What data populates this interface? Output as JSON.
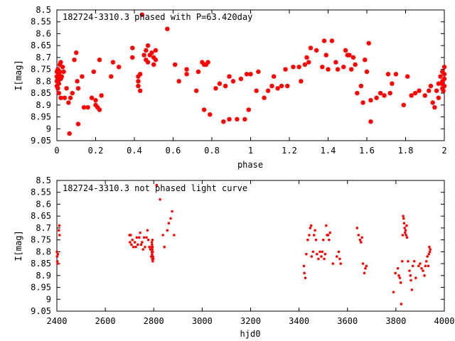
{
  "chart_data": [
    {
      "type": "scatter",
      "title": "182724-3310.3 phased with P=63.420day",
      "xlabel": "phase",
      "ylabel": "I[mag]",
      "xlim": [
        0,
        2
      ],
      "ylim": [
        9.05,
        8.5
      ],
      "y_inverted": true,
      "x_ticks": [
        "0",
        "0.2",
        "0.4",
        "0.6",
        "0.8",
        "1",
        "1.2",
        "1.4",
        "1.6",
        "1.8",
        "2"
      ],
      "y_ticks": [
        "8.5",
        "8.55",
        "8.6",
        "8.65",
        "8.7",
        "8.75",
        "8.8",
        "8.85",
        "8.9",
        "8.95",
        "9",
        "9.05"
      ],
      "marker": "star",
      "color": "#ff0000",
      "points": [
        [
          0.0,
          8.76
        ],
        [
          0.0,
          8.78
        ],
        [
          0.0,
          8.8
        ],
        [
          0.0,
          8.82
        ],
        [
          0.005,
          8.75
        ],
        [
          0.005,
          8.79
        ],
        [
          0.005,
          8.83
        ],
        [
          0.01,
          8.77
        ],
        [
          0.01,
          8.81
        ],
        [
          0.01,
          8.85
        ],
        [
          0.015,
          8.73
        ],
        [
          0.015,
          8.76
        ],
        [
          0.02,
          8.72
        ],
        [
          0.02,
          8.79
        ],
        [
          0.02,
          8.87
        ],
        [
          0.025,
          8.78
        ],
        [
          0.03,
          8.74
        ],
        [
          0.035,
          8.76
        ],
        [
          0.04,
          8.87
        ],
        [
          0.05,
          8.83
        ],
        [
          0.06,
          8.89
        ],
        [
          0.065,
          9.02
        ],
        [
          0.07,
          8.87
        ],
        [
          0.08,
          8.85
        ],
        [
          0.09,
          8.71
        ],
        [
          0.1,
          8.68
        ],
        [
          0.105,
          8.8
        ],
        [
          0.11,
          8.83
        ],
        [
          0.11,
          8.98
        ],
        [
          0.13,
          8.78
        ],
        [
          0.14,
          8.91
        ],
        [
          0.16,
          8.91
        ],
        [
          0.18,
          8.87
        ],
        [
          0.19,
          8.76
        ],
        [
          0.2,
          8.88
        ],
        [
          0.2,
          8.9
        ],
        [
          0.21,
          8.91
        ],
        [
          0.22,
          8.92
        ],
        [
          0.22,
          8.71
        ],
        [
          0.23,
          8.86
        ],
        [
          0.28,
          8.78
        ],
        [
          0.29,
          8.72
        ],
        [
          0.32,
          8.74
        ],
        [
          0.39,
          8.7
        ],
        [
          0.39,
          8.66
        ],
        [
          0.42,
          8.78
        ],
        [
          0.42,
          8.8
        ],
        [
          0.42,
          8.82
        ],
        [
          0.43,
          8.84
        ],
        [
          0.43,
          8.77
        ],
        [
          0.44,
          8.52
        ],
        [
          0.45,
          8.69
        ],
        [
          0.46,
          8.67
        ],
        [
          0.46,
          8.71
        ],
        [
          0.47,
          8.65
        ],
        [
          0.47,
          8.72
        ],
        [
          0.48,
          8.69
        ],
        [
          0.49,
          8.68
        ],
        [
          0.5,
          8.7
        ],
        [
          0.5,
          8.73
        ],
        [
          0.51,
          8.67
        ],
        [
          0.51,
          8.71
        ],
        [
          0.57,
          8.58
        ],
        [
          0.61,
          8.73
        ],
        [
          0.63,
          8.8
        ],
        [
          0.67,
          8.75
        ],
        [
          0.67,
          8.77
        ],
        [
          0.72,
          8.84
        ],
        [
          0.73,
          8.76
        ],
        [
          0.75,
          8.72
        ],
        [
          0.76,
          8.73
        ],
        [
          0.77,
          8.73
        ],
        [
          0.78,
          8.72
        ],
        [
          0.76,
          8.92
        ],
        [
          0.79,
          8.94
        ],
        [
          0.82,
          8.83
        ],
        [
          0.84,
          8.81
        ],
        [
          0.86,
          8.97
        ],
        [
          0.87,
          8.82
        ],
        [
          0.89,
          8.78
        ],
        [
          0.89,
          8.96
        ],
        [
          0.91,
          8.8
        ],
        [
          0.93,
          8.96
        ],
        [
          0.95,
          8.79
        ],
        [
          0.97,
          8.96
        ],
        [
          0.98,
          8.77
        ],
        [
          0.99,
          8.92
        ],
        [
          1.0,
          8.77
        ],
        [
          1.03,
          8.84
        ],
        [
          1.04,
          8.76
        ],
        [
          1.07,
          8.87
        ],
        [
          1.09,
          8.84
        ],
        [
          1.11,
          8.82
        ],
        [
          1.12,
          8.78
        ],
        [
          1.14,
          8.83
        ],
        [
          1.16,
          8.82
        ],
        [
          1.18,
          8.75
        ],
        [
          1.19,
          8.82
        ],
        [
          1.22,
          8.74
        ],
        [
          1.25,
          8.74
        ],
        [
          1.26,
          8.8
        ],
        [
          1.28,
          8.73
        ],
        [
          1.29,
          8.7
        ],
        [
          1.3,
          8.72
        ],
        [
          1.31,
          8.66
        ],
        [
          1.34,
          8.67
        ],
        [
          1.37,
          8.74
        ],
        [
          1.38,
          8.63
        ],
        [
          1.39,
          8.69
        ],
        [
          1.4,
          8.75
        ],
        [
          1.42,
          8.63
        ],
        [
          1.44,
          8.72
        ],
        [
          1.45,
          8.75
        ],
        [
          1.48,
          8.74
        ],
        [
          1.49,
          8.67
        ],
        [
          1.5,
          8.69
        ],
        [
          1.51,
          8.69
        ],
        [
          1.52,
          8.75
        ],
        [
          1.53,
          8.7
        ],
        [
          1.54,
          8.73
        ],
        [
          1.55,
          8.85
        ],
        [
          1.57,
          8.82
        ],
        [
          1.58,
          8.89
        ],
        [
          1.59,
          8.71
        ],
        [
          1.6,
          8.76
        ],
        [
          1.61,
          8.64
        ],
        [
          1.62,
          8.97
        ],
        [
          1.62,
          8.88
        ],
        [
          1.65,
          8.87
        ],
        [
          1.67,
          8.85
        ],
        [
          1.69,
          8.86
        ],
        [
          1.71,
          8.77
        ],
        [
          1.72,
          8.85
        ],
        [
          1.73,
          8.81
        ],
        [
          1.75,
          8.77
        ],
        [
          1.79,
          8.9
        ],
        [
          1.81,
          8.78
        ],
        [
          1.83,
          8.86
        ],
        [
          1.85,
          8.85
        ],
        [
          1.87,
          8.84
        ],
        [
          1.9,
          8.86
        ],
        [
          1.92,
          8.84
        ],
        [
          1.93,
          8.82
        ],
        [
          1.94,
          8.89
        ],
        [
          1.95,
          8.91
        ],
        [
          1.96,
          8.84
        ],
        [
          1.97,
          8.81
        ],
        [
          1.97,
          8.87
        ],
        [
          1.98,
          8.78
        ],
        [
          1.99,
          8.76
        ],
        [
          1.99,
          8.8
        ],
        [
          2.0,
          8.77
        ],
        [
          2.0,
          8.74
        ],
        [
          2.0,
          8.79
        ],
        [
          2.0,
          8.82
        ],
        [
          1.995,
          8.84
        ],
        [
          1.99,
          8.83
        ],
        [
          1.985,
          8.81
        ]
      ]
    },
    {
      "type": "scatter",
      "title": "182724-3310.3 not phased light curve",
      "xlabel": "hjd0",
      "ylabel": "I[mag]",
      "xlim": [
        2400,
        4000
      ],
      "ylim": [
        9.05,
        8.5
      ],
      "y_inverted": true,
      "x_ticks": [
        "2400",
        "2600",
        "2800",
        "3000",
        "3200",
        "3400",
        "3600",
        "3800",
        "4000"
      ],
      "y_ticks": [
        "8.5",
        "8.55",
        "8.6",
        "8.65",
        "8.7",
        "8.75",
        "8.8",
        "8.85",
        "8.9",
        "8.95",
        "9",
        "9.05"
      ],
      "marker": "dot",
      "color": "#ff0000",
      "points": [
        [
          2400,
          8.8
        ],
        [
          2401,
          8.82
        ],
        [
          2402,
          8.84
        ],
        [
          2403,
          8.85
        ],
        [
          2404,
          8.81
        ],
        [
          2408,
          8.71
        ],
        [
          2410,
          8.69
        ],
        [
          2411,
          8.73
        ],
        [
          2700,
          8.73
        ],
        [
          2702,
          8.76
        ],
        [
          2705,
          8.73
        ],
        [
          2708,
          8.77
        ],
        [
          2712,
          8.75
        ],
        [
          2716,
          8.78
        ],
        [
          2722,
          8.76
        ],
        [
          2726,
          8.78
        ],
        [
          2730,
          8.74
        ],
        [
          2734,
          8.77
        ],
        [
          2740,
          8.74
        ],
        [
          2744,
          8.72
        ],
        [
          2748,
          8.77
        ],
        [
          2752,
          8.76
        ],
        [
          2756,
          8.79
        ],
        [
          2760,
          8.74
        ],
        [
          2764,
          8.78
        ],
        [
          2770,
          8.74
        ],
        [
          2774,
          8.71
        ],
        [
          2778,
          8.75
        ],
        [
          2782,
          8.78
        ],
        [
          2786,
          8.79
        ],
        [
          2790,
          8.82
        ],
        [
          2792,
          8.76
        ],
        [
          2792,
          8.78
        ],
        [
          2792,
          8.8
        ],
        [
          2792,
          8.82
        ],
        [
          2793,
          8.77
        ],
        [
          2793,
          8.81
        ],
        [
          2794,
          8.79
        ],
        [
          2794,
          8.83
        ],
        [
          2795,
          8.75
        ],
        [
          2795,
          8.78
        ],
        [
          2796,
          8.8
        ],
        [
          2796,
          8.84
        ],
        [
          2797,
          8.82
        ],
        [
          2798,
          8.83
        ],
        [
          2812,
          8.52
        ],
        [
          2826,
          8.58
        ],
        [
          2838,
          8.73
        ],
        [
          2844,
          8.78
        ],
        [
          2856,
          8.71
        ],
        [
          2862,
          8.68
        ],
        [
          2870,
          8.66
        ],
        [
          2876,
          8.63
        ],
        [
          2884,
          8.73
        ],
        [
          3420,
          8.86
        ],
        [
          3422,
          8.89
        ],
        [
          3426,
          8.91
        ],
        [
          3430,
          8.81
        ],
        [
          3436,
          8.75
        ],
        [
          3442,
          8.73
        ],
        [
          3446,
          8.7
        ],
        [
          3450,
          8.69
        ],
        [
          3452,
          8.82
        ],
        [
          3458,
          8.8
        ],
        [
          3462,
          8.73
        ],
        [
          3466,
          8.71
        ],
        [
          3470,
          8.75
        ],
        [
          3474,
          8.81
        ],
        [
          3480,
          8.83
        ],
        [
          3486,
          8.8
        ],
        [
          3492,
          8.82
        ],
        [
          3496,
          8.8
        ],
        [
          3500,
          8.75
        ],
        [
          3504,
          8.83
        ],
        [
          3508,
          8.81
        ],
        [
          3512,
          8.69
        ],
        [
          3516,
          8.73
        ],
        [
          3520,
          8.73
        ],
        [
          3524,
          8.75
        ],
        [
          3528,
          8.72
        ],
        [
          3540,
          8.85
        ],
        [
          3556,
          8.82
        ],
        [
          3564,
          8.8
        ],
        [
          3568,
          8.83
        ],
        [
          3572,
          8.85
        ],
        [
          3640,
          8.7
        ],
        [
          3646,
          8.73
        ],
        [
          3652,
          8.75
        ],
        [
          3656,
          8.76
        ],
        [
          3660,
          8.74
        ],
        [
          3664,
          8.85
        ],
        [
          3670,
          8.89
        ],
        [
          3674,
          8.87
        ],
        [
          3678,
          8.86
        ],
        [
          3790,
          8.97
        ],
        [
          3798,
          8.89
        ],
        [
          3808,
          8.87
        ],
        [
          3812,
          8.9
        ],
        [
          3816,
          8.91
        ],
        [
          3820,
          8.93
        ],
        [
          3822,
          9.02
        ],
        [
          3826,
          8.84
        ],
        [
          3828,
          8.73
        ],
        [
          3832,
          8.66
        ],
        [
          3834,
          8.68
        ],
        [
          3836,
          8.7
        ],
        [
          3838,
          8.72
        ],
        [
          3840,
          8.71
        ],
        [
          3842,
          8.73
        ],
        [
          3844,
          8.69
        ],
        [
          3830,
          8.65
        ],
        [
          3846,
          8.74
        ],
        [
          3850,
          8.84
        ],
        [
          3856,
          8.88
        ],
        [
          3860,
          8.9
        ],
        [
          3862,
          8.92
        ],
        [
          3866,
          8.96
        ],
        [
          3870,
          8.86
        ],
        [
          3876,
          8.84
        ],
        [
          3882,
          8.91
        ],
        [
          3894,
          8.86
        ],
        [
          3900,
          8.85
        ],
        [
          3906,
          8.87
        ],
        [
          3912,
          8.88
        ],
        [
          3918,
          8.9
        ],
        [
          3922,
          8.86
        ],
        [
          3926,
          8.84
        ],
        [
          3930,
          8.82
        ],
        [
          3934,
          8.86
        ],
        [
          3936,
          8.81
        ],
        [
          3938,
          8.78
        ],
        [
          3940,
          8.8
        ],
        [
          3942,
          8.79
        ]
      ]
    }
  ]
}
